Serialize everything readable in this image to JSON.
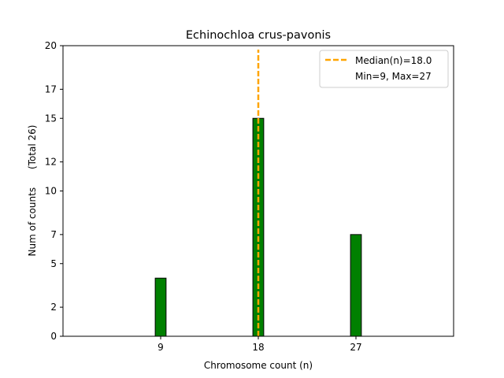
{
  "chart_data": {
    "type": "bar",
    "title": "Echinochloa crus-pavonis",
    "xlabel": "Chromosome count (n)",
    "ylabel": "Num of counts      (Total 26)",
    "x": [
      9,
      18,
      27
    ],
    "values": [
      4,
      15,
      7
    ],
    "bar_color": "#008000",
    "bar_edge": "#000000",
    "xlim": [
      0,
      36
    ],
    "ylim": [
      0,
      20
    ],
    "xticks": [
      9,
      18,
      27
    ],
    "yticks": [
      0,
      2,
      5,
      7,
      10,
      12,
      15,
      17,
      20
    ],
    "median": {
      "value": 18.0,
      "label": "Median(n)=18.0",
      "color": "#FFA500",
      "style": "dashed"
    },
    "legend": {
      "placement": "top-right",
      "entries": [
        "Median(n)=18.0",
        "Min=9, Max=27"
      ]
    }
  }
}
